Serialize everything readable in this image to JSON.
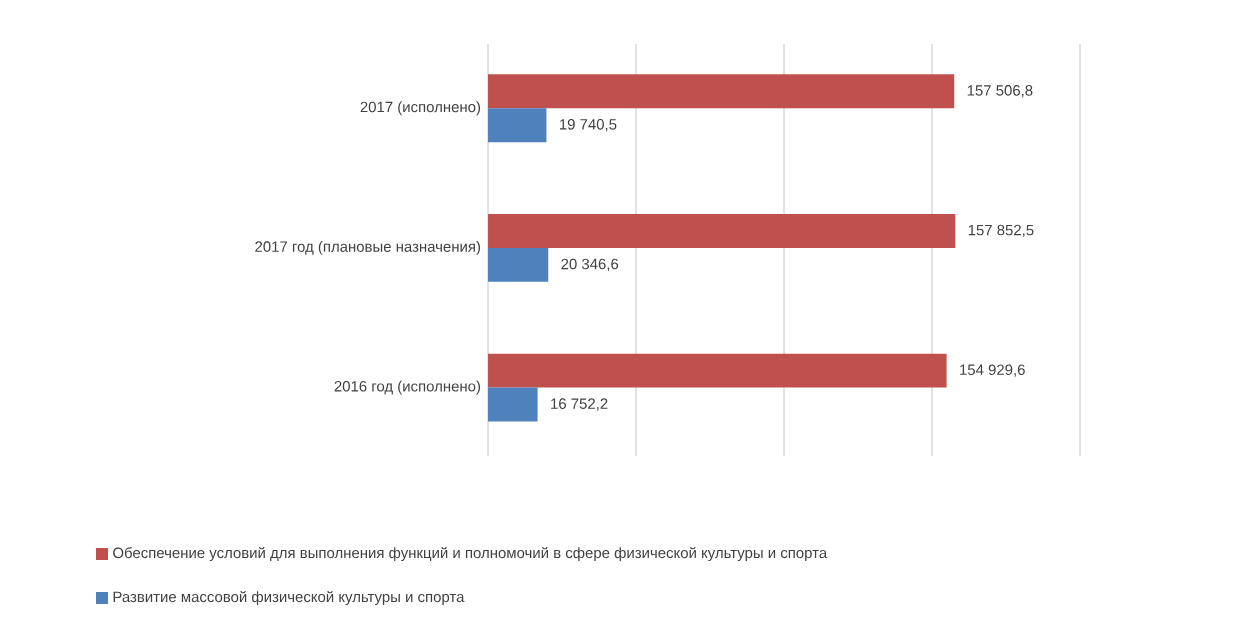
{
  "chart_data": {
    "type": "bar",
    "orientation": "horizontal",
    "categories": [
      "2017 (исполнено)",
      "2017 год  (плановые назначения)",
      "2016 год  (исполнено)"
    ],
    "series": [
      {
        "name": "Обеспечение условий для выполнения  функций и полномочий в сфере физической культуры и спорта",
        "color": "#c0504d",
        "values": [
          157506.8,
          157852.5,
          154929.6
        ],
        "value_labels": [
          "157 506,8",
          "157 852,5",
          "154 929,6"
        ]
      },
      {
        "name": "Развитие массовой физической культуры и спорта",
        "color": "#4f81bd",
        "values": [
          19740.5,
          20346.6,
          16752.2
        ],
        "value_labels": [
          "19 740,5",
          "20 346,6",
          "16 752,2"
        ]
      }
    ],
    "xlim": [
      0,
      200000
    ],
    "xticks": [
      {
        "value": 0,
        "label": null
      },
      {
        "value": 50000,
        "label": null
      },
      {
        "value": 100000,
        "label": null
      },
      {
        "value": 150000,
        "label": null
      },
      {
        "value": 200000,
        "label": null
      }
    ],
    "grid": "x",
    "tick_labels": "y",
    "legend": "bottom"
  }
}
